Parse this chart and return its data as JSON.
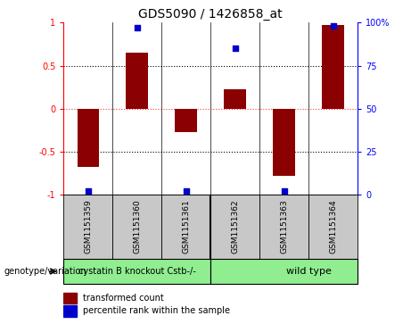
{
  "title": "GDS5090 / 1426858_at",
  "samples": [
    "GSM1151359",
    "GSM1151360",
    "GSM1151361",
    "GSM1151362",
    "GSM1151363",
    "GSM1151364"
  ],
  "transformed_counts": [
    -0.68,
    0.65,
    -0.27,
    0.22,
    -0.78,
    0.97
  ],
  "percentile_ranks": [
    2,
    97,
    2,
    85,
    2,
    98
  ],
  "bar_color": "#8B0000",
  "dot_color": "#0000CD",
  "ylim": [
    -1.0,
    1.0
  ],
  "y_left_ticks": [
    -1,
    -0.5,
    0,
    0.5,
    1
  ],
  "y_left_labels": [
    "-1",
    "-0.5",
    "0",
    "0.5",
    "1"
  ],
  "y_right_ticks": [
    -1,
    -0.5,
    0,
    0.5,
    1
  ],
  "y_right_labels": [
    "0",
    "25",
    "50",
    "75",
    "100%"
  ],
  "hline_dotted": [
    -0.5,
    0.5
  ],
  "hline_red_dashed": 0,
  "legend_items": [
    {
      "color": "#8B0000",
      "label": "transformed count"
    },
    {
      "color": "#0000CD",
      "label": "percentile rank within the sample"
    }
  ],
  "genotype_label": "genotype/variation",
  "group1_label": "cystatin B knockout Cstb-/-",
  "group2_label": "wild type",
  "group1_color": "#90EE90",
  "group2_color": "#90EE90",
  "sample_box_color": "#C8C8C8",
  "bar_width": 0.45,
  "title_fontsize": 10,
  "tick_fontsize": 7,
  "label_fontsize": 6.5,
  "group_fontsize": 7,
  "legend_fontsize": 7,
  "genotype_fontsize": 7
}
